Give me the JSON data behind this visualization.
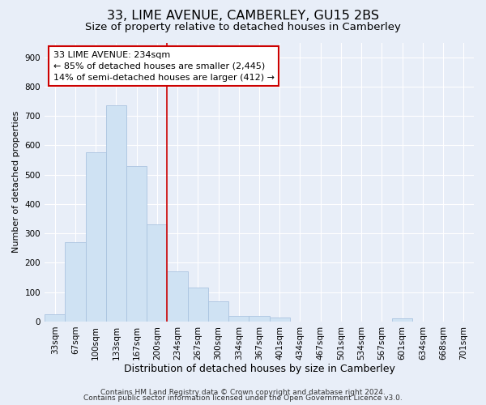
{
  "title": "33, LIME AVENUE, CAMBERLEY, GU15 2BS",
  "subtitle": "Size of property relative to detached houses in Camberley",
  "xlabel": "Distribution of detached houses by size in Camberley",
  "ylabel": "Number of detached properties",
  "bar_labels": [
    "33sqm",
    "67sqm",
    "100sqm",
    "133sqm",
    "167sqm",
    "200sqm",
    "234sqm",
    "267sqm",
    "300sqm",
    "334sqm",
    "367sqm",
    "401sqm",
    "434sqm",
    "467sqm",
    "501sqm",
    "534sqm",
    "567sqm",
    "601sqm",
    "634sqm",
    "668sqm",
    "701sqm"
  ],
  "bar_values": [
    25,
    270,
    575,
    735,
    530,
    330,
    170,
    115,
    68,
    20,
    18,
    15,
    0,
    0,
    0,
    0,
    0,
    10,
    0,
    0,
    0
  ],
  "bar_color": "#cfe2f3",
  "bar_edgecolor": "#aac4e0",
  "vline_x_idx": 6,
  "vline_color": "#cc0000",
  "annotation_line1": "33 LIME AVENUE: 234sqm",
  "annotation_line2": "← 85% of detached houses are smaller (2,445)",
  "annotation_line3": "14% of semi-detached houses are larger (412) →",
  "annotation_box_facecolor": "#ffffff",
  "annotation_box_edgecolor": "#cc0000",
  "ylim": [
    0,
    950
  ],
  "yticks": [
    0,
    100,
    200,
    300,
    400,
    500,
    600,
    700,
    800,
    900
  ],
  "bg_color": "#e8eef8",
  "plot_bg_color": "#e8eef8",
  "grid_color": "#ffffff",
  "footer1": "Contains HM Land Registry data © Crown copyright and database right 2024.",
  "footer2": "Contains public sector information licensed under the Open Government Licence v3.0.",
  "title_fontsize": 11.5,
  "subtitle_fontsize": 9.5,
  "xlabel_fontsize": 9,
  "ylabel_fontsize": 8,
  "tick_fontsize": 7.5,
  "annotation_fontsize": 8,
  "footer_fontsize": 6.5
}
